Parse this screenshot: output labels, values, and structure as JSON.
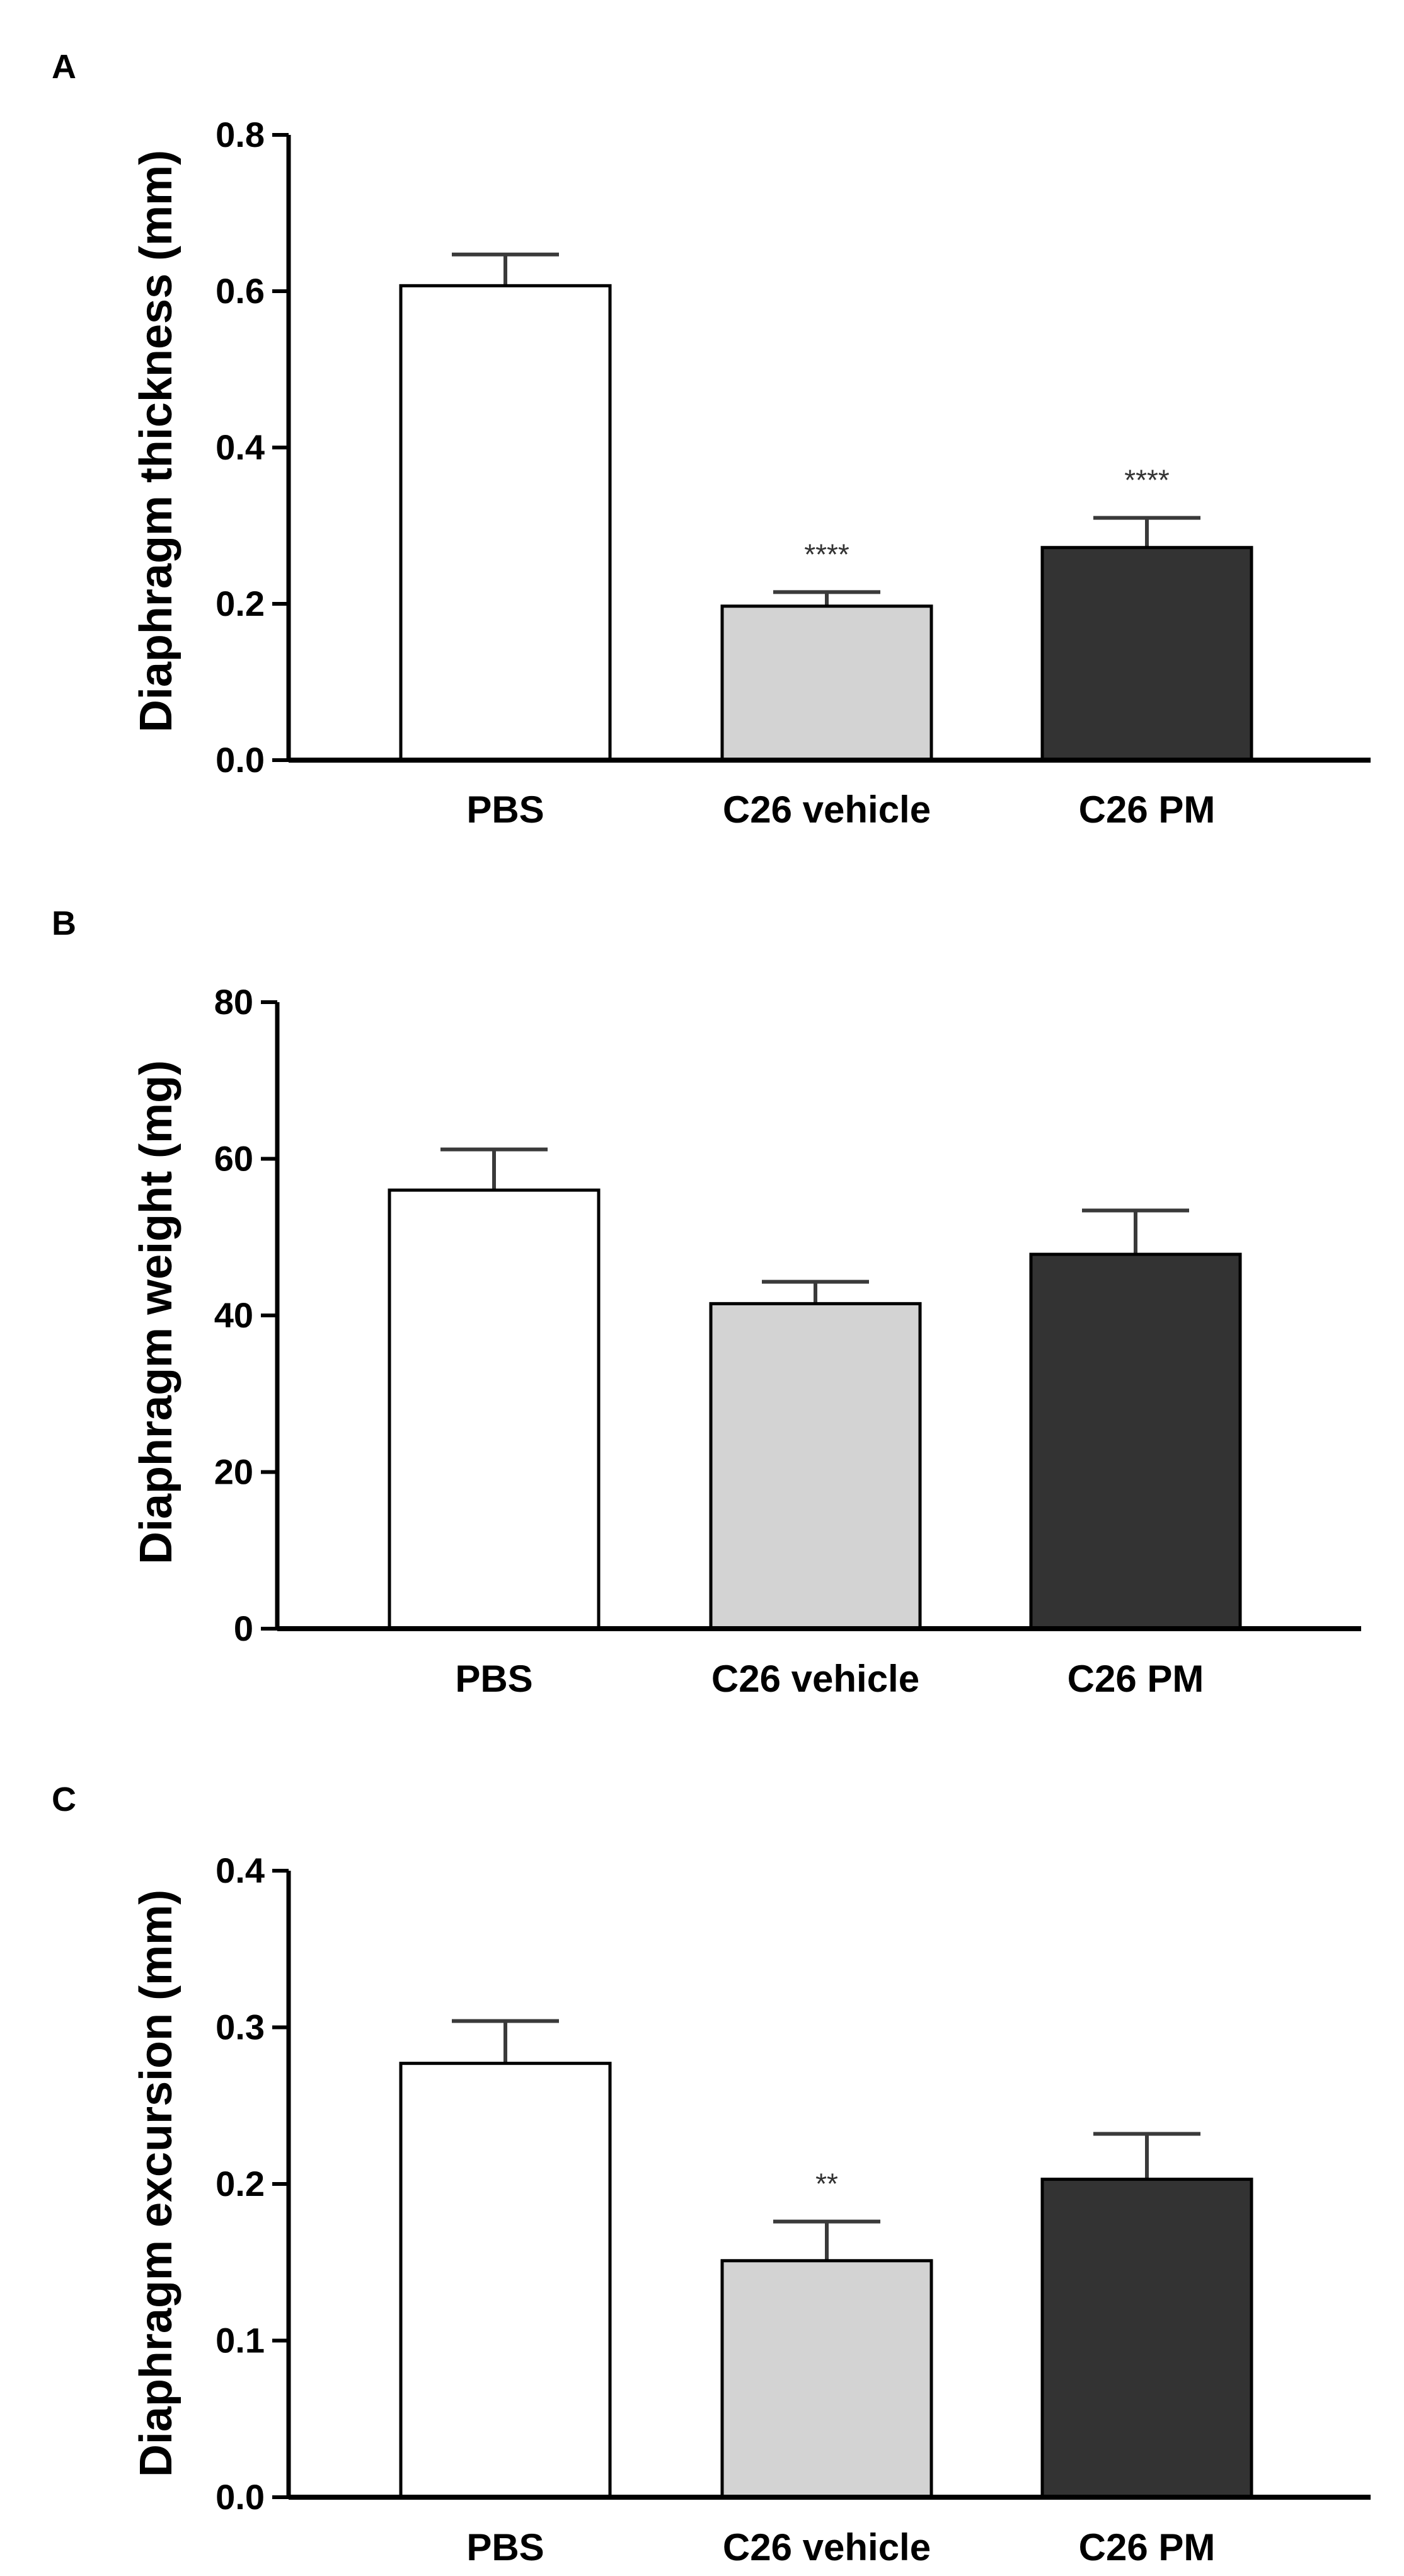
{
  "chart_data": [
    {
      "panel": "A",
      "type": "bar",
      "categories": [
        "PBS",
        "C26 vehicle",
        "C26 PM"
      ],
      "values": [
        0.607,
        0.197,
        0.272
      ],
      "errors": [
        0.04,
        0.018,
        0.038
      ],
      "significance": [
        "",
        "****",
        "****"
      ],
      "bar_colors": [
        "#ffffff",
        "#d3d3d3",
        "#333333"
      ],
      "ylabel": "Diaphragm thickness (mm)",
      "xlabel": "",
      "ylim": [
        0,
        0.8
      ],
      "yticks": [
        0.0,
        0.2,
        0.4,
        0.6,
        0.8
      ],
      "ytick_labels": [
        "0.0",
        "0.2",
        "0.4",
        "0.6",
        "0.8"
      ]
    },
    {
      "panel": "B",
      "type": "bar",
      "categories": [
        "PBS",
        "C26 vehicle",
        "C26 PM"
      ],
      "values": [
        56,
        41.5,
        47.8
      ],
      "errors": [
        5.2,
        2.8,
        5.6
      ],
      "significance": [
        "",
        "",
        ""
      ],
      "bar_colors": [
        "#ffffff",
        "#d3d3d3",
        "#333333"
      ],
      "ylabel": "Diaphragm weight (mg)",
      "xlabel": "",
      "ylim": [
        0,
        80
      ],
      "yticks": [
        0,
        20,
        40,
        60,
        80
      ],
      "ytick_labels": [
        "0",
        "20",
        "40",
        "60",
        "80"
      ]
    },
    {
      "panel": "C",
      "type": "bar",
      "categories": [
        "PBS",
        "C26 vehicle",
        "C26 PM"
      ],
      "values": [
        0.277,
        0.151,
        0.203
      ],
      "errors": [
        0.027,
        0.025,
        0.029
      ],
      "significance": [
        "",
        "**",
        ""
      ],
      "bar_colors": [
        "#ffffff",
        "#d3d3d3",
        "#333333"
      ],
      "ylabel": "Diaphragm excursion (mm)",
      "xlabel": "",
      "ylim": [
        0,
        0.4
      ],
      "yticks": [
        0.0,
        0.1,
        0.2,
        0.3,
        0.4
      ],
      "ytick_labels": [
        "0.0",
        "0.1",
        "0.2",
        "0.3",
        "0.4"
      ]
    }
  ]
}
